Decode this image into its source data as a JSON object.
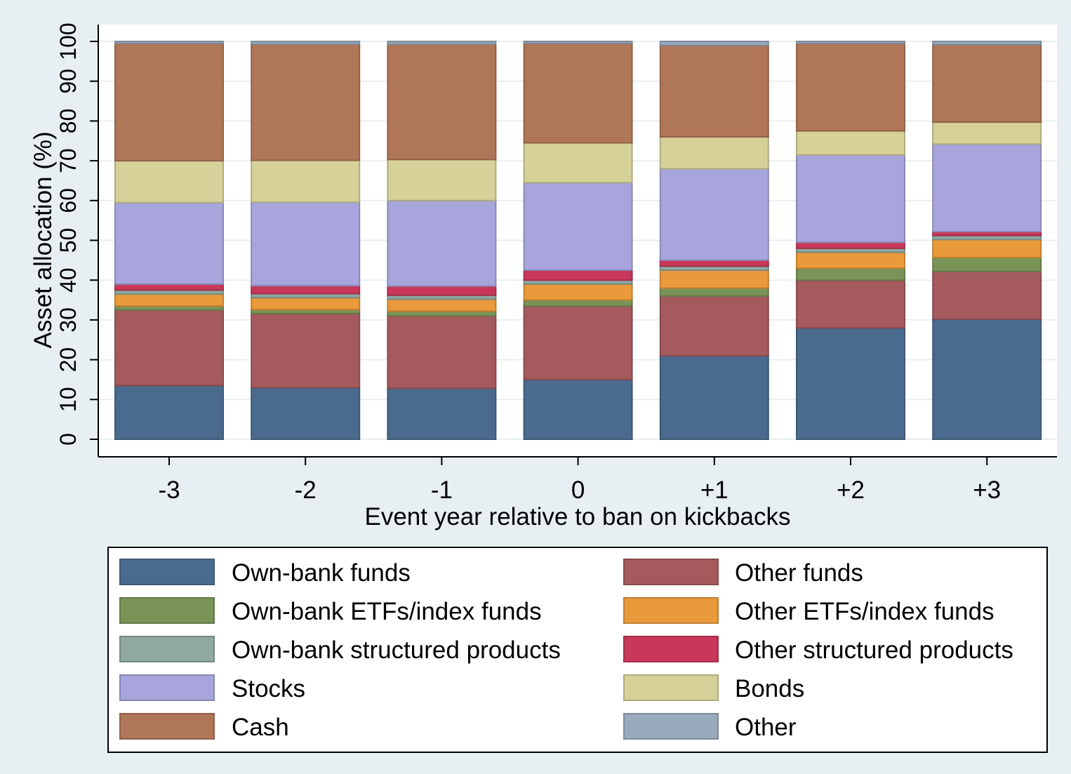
{
  "chart_data": {
    "type": "bar",
    "stacked": true,
    "title": "",
    "xlabel": "Event year relative to ban on kickbacks",
    "ylabel": "Asset allocation (%)",
    "ylim": [
      0,
      100
    ],
    "yticks": [
      0,
      10,
      20,
      30,
      40,
      50,
      60,
      70,
      80,
      90,
      100
    ],
    "grid": true,
    "legend_position": "bottom",
    "categories": [
      "-3",
      "-2",
      "-1",
      "0",
      "+1",
      "+2",
      "+3"
    ],
    "series": [
      {
        "name": "Own-bank funds",
        "color": "#4a6b8d",
        "values": [
          13.5,
          13.0,
          12.8,
          15.0,
          21.0,
          28.0,
          30.2
        ]
      },
      {
        "name": "Other funds",
        "color": "#a55a5e",
        "values": [
          19.0,
          18.6,
          18.2,
          18.5,
          15.0,
          12.0,
          12.0
        ]
      },
      {
        "name": "Own-bank ETFs/index funds",
        "color": "#7a9458",
        "values": [
          1.0,
          1.0,
          1.2,
          1.5,
          2.0,
          3.0,
          3.5
        ]
      },
      {
        "name": "Other ETFs/index funds",
        "color": "#ea9a3a",
        "values": [
          3.0,
          3.0,
          3.0,
          4.0,
          4.5,
          4.0,
          4.5
        ]
      },
      {
        "name": "Own-bank structured products",
        "color": "#8fa8a0",
        "values": [
          1.0,
          1.0,
          1.0,
          1.0,
          1.0,
          1.0,
          1.0
        ]
      },
      {
        "name": "Other structured products",
        "color": "#c9385a",
        "values": [
          1.5,
          2.0,
          2.3,
          2.5,
          1.5,
          1.5,
          1.0
        ]
      },
      {
        "name": "Stocks",
        "color": "#a8a5dc",
        "values": [
          20.5,
          21.0,
          21.5,
          22.0,
          23.0,
          22.0,
          22.0
        ]
      },
      {
        "name": "Bonds",
        "color": "#d6d198",
        "values": [
          10.5,
          10.5,
          10.3,
          10.0,
          8.0,
          6.0,
          5.5
        ]
      },
      {
        "name": "Cash",
        "color": "#b07658",
        "values": [
          29.5,
          29.2,
          29.0,
          25.0,
          23.0,
          22.0,
          19.5
        ]
      },
      {
        "name": "Other",
        "color": "#98aabb",
        "values": [
          0.5,
          0.7,
          0.7,
          0.5,
          1.0,
          0.5,
          0.8
        ]
      }
    ],
    "legend_order": [
      "Own-bank funds",
      "Other funds",
      "Own-bank ETFs/index funds",
      "Other ETFs/index funds",
      "Own-bank structured products",
      "Other structured products",
      "Stocks",
      "Bonds",
      "Cash",
      "Other"
    ]
  }
}
